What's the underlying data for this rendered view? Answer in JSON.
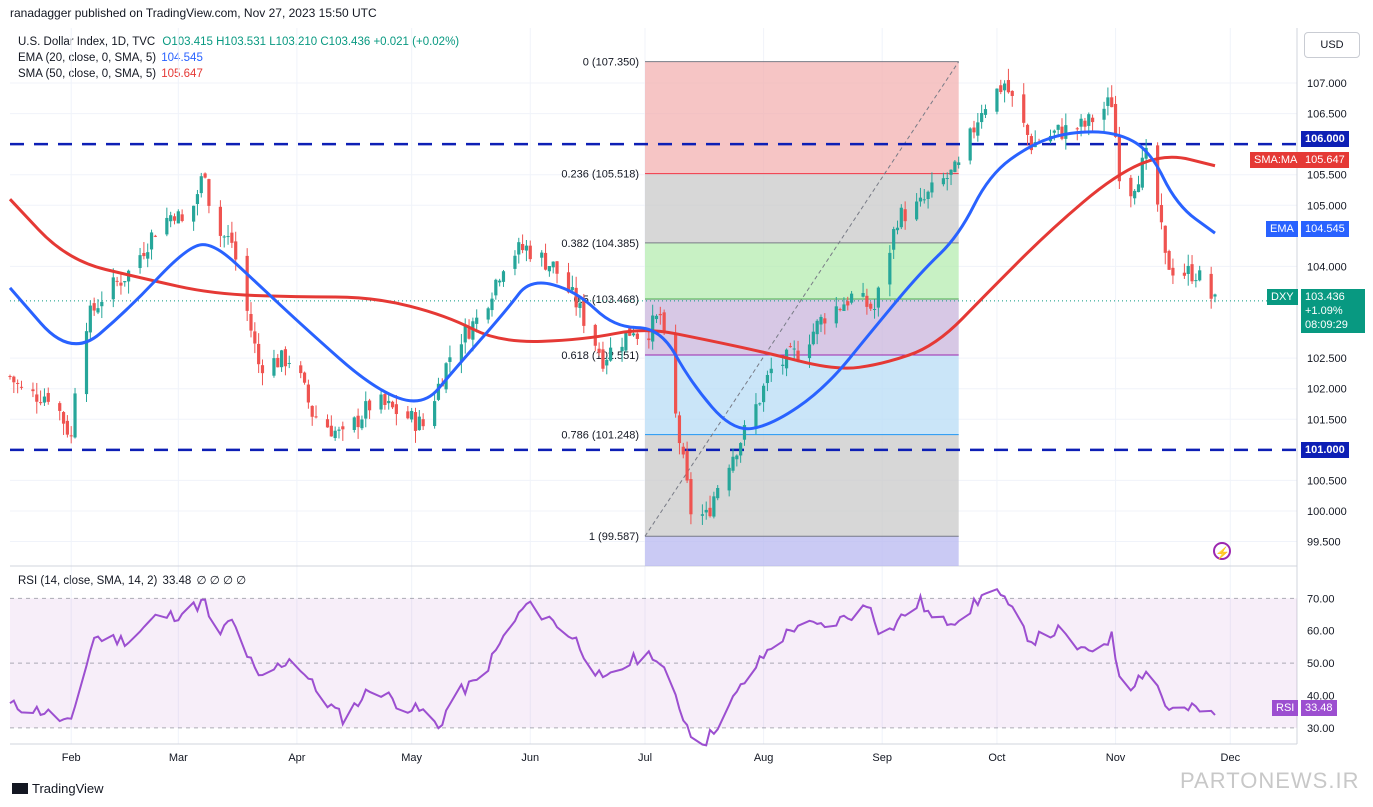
{
  "header": {
    "publisher": "ranadagger published on TradingView.com, Nov 27, 2023 15:50 UTC"
  },
  "legend": {
    "symbol": "U.S. Dollar Index, 1D, TVC",
    "ohlc": {
      "o": "O103.415",
      "h": "H103.531",
      "l": "L103.210",
      "c": "C103.436",
      "chg": "+0.021 (+0.02%)"
    },
    "ema": {
      "label": "EMA (20, close, 0, SMA, 5)",
      "value": "104.545"
    },
    "sma": {
      "label": "SMA (50, close, 0, SMA, 5)",
      "value": "105.647"
    },
    "rsi": {
      "label": "RSI (14, close, SMA, 14, 2)",
      "value": "33.48",
      "extra": "∅ ∅ ∅ ∅"
    }
  },
  "currency_button": "USD",
  "price_tags": {
    "level_high": "106.000",
    "level_low": "101.000",
    "sma_tag": "SMA:MA",
    "sma_val": "105.647",
    "ema_tag": "EMA",
    "ema_val": "104.545",
    "dxy_tag": "DXY",
    "dxy_price": "103.436",
    "dxy_chg": "+1.09%",
    "dxy_time": "08:09:29",
    "rsi_tag": "RSI",
    "rsi_val": "33.48"
  },
  "footer": {
    "brand": "TradingView",
    "watermark": "PARTONEWS.IR"
  },
  "colors": {
    "up": "#26a69a",
    "down": "#ef5350",
    "ema": "#2962ff",
    "sma": "#e53935",
    "rsi": "#9c4fd0",
    "level": "#0d1fb5"
  },
  "chart_data": [
    {
      "type": "candlestick",
      "title": "U.S. Dollar Index, 1D, TVC",
      "x_ticks": [
        "Feb",
        "Mar",
        "Apr",
        "May",
        "Jun",
        "Jul",
        "Aug",
        "Sep",
        "Oct",
        "Nov",
        "Dec"
      ],
      "y_ticks": [
        "107.000",
        "106.500",
        "105.500",
        "105.000",
        "104.000",
        "102.500",
        "102.000",
        "101.500",
        "100.500",
        "100.000",
        "99.500"
      ],
      "ylim": [
        99.1,
        107.9
      ],
      "horizontal_levels": [
        106.0,
        101.0
      ],
      "close_path": [
        [
          "Jan 16",
          102.2
        ],
        [
          "Jan 20",
          101.9
        ],
        [
          "Jan 27",
          101.9
        ],
        [
          "Feb 1",
          101.2
        ],
        [
          "Feb 3",
          102.9
        ],
        [
          "Feb 9",
          103.5
        ],
        [
          "Feb 16",
          103.9
        ],
        [
          "Feb 23",
          104.6
        ],
        [
          "Feb 28",
          104.9
        ],
        [
          "Mar 3",
          104.6
        ],
        [
          "Mar 8",
          105.6
        ],
        [
          "Mar 10",
          104.6
        ],
        [
          "Mar 15",
          104.4
        ],
        [
          "Mar 22",
          102.4
        ],
        [
          "Mar 31",
          102.5
        ],
        [
          "Apr 5",
          101.6
        ],
        [
          "Apr 13",
          101.2
        ],
        [
          "Apr 21",
          101.8
        ],
        [
          "Apr 28",
          101.6
        ],
        [
          "May 4",
          101.4
        ],
        [
          "May 12",
          102.7
        ],
        [
          "May 19",
          103.2
        ],
        [
          "May 26",
          104.2
        ],
        [
          "May 31",
          104.3
        ],
        [
          "Jun 7",
          104.0
        ],
        [
          "Jun 13",
          103.4
        ],
        [
          "Jun 20",
          102.5
        ],
        [
          "Jun 28",
          103.0
        ],
        [
          "Jun 30",
          102.8
        ],
        [
          "Jul 5",
          103.2
        ],
        [
          "Jul 7",
          102.3
        ],
        [
          "Jul 13",
          100.0
        ],
        [
          "Jul 17",
          99.9
        ],
        [
          "Jul 21",
          100.6
        ],
        [
          "Jul 28",
          101.4
        ],
        [
          "Aug 3",
          102.3
        ],
        [
          "Aug 10",
          102.6
        ],
        [
          "Aug 17",
          103.2
        ],
        [
          "Aug 24",
          103.5
        ],
        [
          "Aug 30",
          103.3
        ],
        [
          "Sep 5",
          104.8
        ],
        [
          "Sep 11",
          105.0
        ],
        [
          "Sep 15",
          105.3
        ],
        [
          "Sep 21",
          105.6
        ],
        [
          "Sep 27",
          106.6
        ],
        [
          "Oct 3",
          107.0
        ],
        [
          "Oct 10",
          106.0
        ],
        [
          "Oct 17",
          106.2
        ],
        [
          "Oct 24",
          106.3
        ],
        [
          "Oct 31",
          106.7
        ],
        [
          "Nov 3",
          105.0
        ],
        [
          "Nov 10",
          105.9
        ],
        [
          "Nov 14",
          104.1
        ],
        [
          "Nov 17",
          103.9
        ],
        [
          "Nov 22",
          103.9
        ],
        [
          "Nov 27",
          103.4
        ]
      ],
      "series": [
        {
          "name": "EMA (20, close, 0, SMA, 5)",
          "last": 104.545,
          "values": [
            [
              "Jan 16",
              103.65
            ],
            [
              "Feb 1",
              102.5
            ],
            [
              "Feb 16",
              103.3
            ],
            [
              "Mar 3",
              104.3
            ],
            [
              "Mar 10",
              104.4
            ],
            [
              "Mar 22",
              103.7
            ],
            [
              "Apr 3",
              103.0
            ],
            [
              "Apr 21",
              102.0
            ],
            [
              "May 4",
              101.7
            ],
            [
              "May 12",
              102.3
            ],
            [
              "May 26",
              103.3
            ],
            [
              "Jun 1",
              103.8
            ],
            [
              "Jun 13",
              103.6
            ],
            [
              "Jun 23",
              103.0
            ],
            [
              "Jul 5",
              103.0
            ],
            [
              "Jul 13",
              102.1
            ],
            [
              "Jul 24",
              101.3
            ],
            [
              "Aug 3",
              101.4
            ],
            [
              "Aug 17",
              102.0
            ],
            [
              "Aug 30",
              103.0
            ],
            [
              "Sep 11",
              103.9
            ],
            [
              "Sep 21",
              104.5
            ],
            [
              "Sep 29",
              105.5
            ],
            [
              "Oct 10",
              106.0
            ],
            [
              "Oct 20",
              106.2
            ],
            [
              "Nov 1",
              106.2
            ],
            [
              "Nov 10",
              105.9
            ],
            [
              "Nov 17",
              105.0
            ],
            [
              "Nov 27",
              104.545
            ]
          ]
        },
        {
          "name": "SMA (50, close, 0, SMA, 5)",
          "last": 105.647,
          "values": [
            [
              "Jan 16",
              105.1
            ],
            [
              "Jan 31",
              104.1
            ],
            [
              "Feb 20",
              103.8
            ],
            [
              "Mar 10",
              103.55
            ],
            [
              "Apr 1",
              103.5
            ],
            [
              "Apr 21",
              103.5
            ],
            [
              "May 10",
              103.2
            ],
            [
              "May 24",
              102.75
            ],
            [
              "Jun 15",
              102.8
            ],
            [
              "Jul 1",
              103.0
            ],
            [
              "Jul 17",
              102.8
            ],
            [
              "Aug 1",
              102.6
            ],
            [
              "Aug 20",
              102.3
            ],
            [
              "Sep 1",
              102.4
            ],
            [
              "Sep 15",
              102.7
            ],
            [
              "Sep 29",
              103.6
            ],
            [
              "Oct 15",
              104.6
            ],
            [
              "Nov 1",
              105.5
            ],
            [
              "Nov 14",
              105.85
            ],
            [
              "Nov 27",
              105.647
            ]
          ]
        }
      ],
      "fibonacci": [
        {
          "ratio": "0",
          "price": "107.350"
        },
        {
          "ratio": "0.236",
          "price": "105.518"
        },
        {
          "ratio": "0.382",
          "price": "104.385"
        },
        {
          "ratio": "0.5",
          "price": "103.468"
        },
        {
          "ratio": "0.618",
          "price": "102.551"
        },
        {
          "ratio": "0.786",
          "price": "101.248"
        },
        {
          "ratio": "1",
          "price": "99.587"
        }
      ],
      "last_price": 103.436
    },
    {
      "type": "line",
      "title": "RSI (14, close, SMA, 14, 2)",
      "y_ticks": [
        "70.00",
        "60.00",
        "50.00",
        "40.00",
        "30.00"
      ],
      "ylim": [
        25,
        80
      ],
      "band": [
        30,
        70
      ],
      "series": [
        {
          "name": "RSI",
          "last": 33.48,
          "values": [
            [
              "Jan 16",
              37
            ],
            [
              "Jan 25",
              35
            ],
            [
              "Feb 1",
              31
            ],
            [
              "Feb 3",
              42
            ],
            [
              "Feb 7",
              58
            ],
            [
              "Feb 16",
              57
            ],
            [
              "Feb 23",
              64
            ],
            [
              "Mar 1",
              65
            ],
            [
              "Mar 8",
              69
            ],
            [
              "Mar 10",
              57
            ],
            [
              "Mar 15",
              63
            ],
            [
              "Mar 22",
              45
            ],
            [
              "Mar 31",
              52
            ],
            [
              "Apr 7",
              40
            ],
            [
              "Apr 13",
              33
            ],
            [
              "Apr 21",
              43
            ],
            [
              "Apr 28",
              37
            ],
            [
              "May 4",
              35
            ],
            [
              "May 8",
              30
            ],
            [
              "May 12",
              40
            ],
            [
              "May 19",
              45
            ],
            [
              "May 26",
              60
            ],
            [
              "May 31",
              68
            ],
            [
              "Jun 7",
              63
            ],
            [
              "Jun 13",
              57
            ],
            [
              "Jun 20",
              44
            ],
            [
              "Jun 28",
              51
            ],
            [
              "Jul 3",
              53
            ],
            [
              "Jul 7",
              45
            ],
            [
              "Jul 13",
              28
            ],
            [
              "Jul 17",
              26
            ],
            [
              "Jul 21",
              33
            ],
            [
              "Jul 28",
              46
            ],
            [
              "Aug 3",
              55
            ],
            [
              "Aug 10",
              62
            ],
            [
              "Aug 17",
              61
            ],
            [
              "Aug 24",
              65
            ],
            [
              "Aug 29",
              68
            ],
            [
              "Sep 1",
              57
            ],
            [
              "Sep 5",
              63
            ],
            [
              "Sep 11",
              69
            ],
            [
              "Sep 15",
              62
            ],
            [
              "Sep 21",
              64
            ],
            [
              "Sep 27",
              70
            ],
            [
              "Sep 29",
              76
            ],
            [
              "Oct 3",
              69
            ],
            [
              "Oct 10",
              57
            ],
            [
              "Oct 17",
              60
            ],
            [
              "Oct 24",
              53
            ],
            [
              "Oct 31",
              58
            ],
            [
              "Nov 3",
              41
            ],
            [
              "Nov 10",
              49
            ],
            [
              "Nov 14",
              37
            ],
            [
              "Nov 17",
              35
            ],
            [
              "Nov 22",
              36
            ],
            [
              "Nov 27",
              33.48
            ]
          ]
        }
      ]
    }
  ]
}
